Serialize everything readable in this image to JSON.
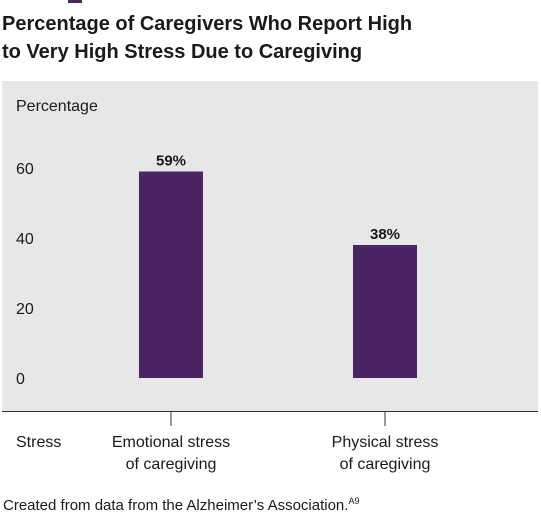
{
  "chart_data": {
    "type": "bar",
    "title": "Percentage of Caregivers Who Report High to Very High Stress Due to Caregiving",
    "title_lines": [
      "Percentage of Caregivers Who Report High",
      "to Very High Stress Due to Caregiving"
    ],
    "ylabel": "Percentage",
    "xlabel": "Stress",
    "categories": [
      "Emotional stress of caregiving",
      "Physical stress of caregiving"
    ],
    "category_lines": [
      [
        "Emotional stress",
        "of caregiving"
      ],
      [
        "Physical stress",
        "of caregiving"
      ]
    ],
    "values": [
      59,
      38
    ],
    "data_labels": [
      "59%",
      "38%"
    ],
    "yticks": [
      0,
      20,
      40,
      60
    ],
    "ylim": [
      0,
      60
    ],
    "grid": false,
    "bar_color": "#4a2463"
  },
  "caption": {
    "text": "Created from data from the Alzheimer’s Association.",
    "ref": "A9"
  }
}
